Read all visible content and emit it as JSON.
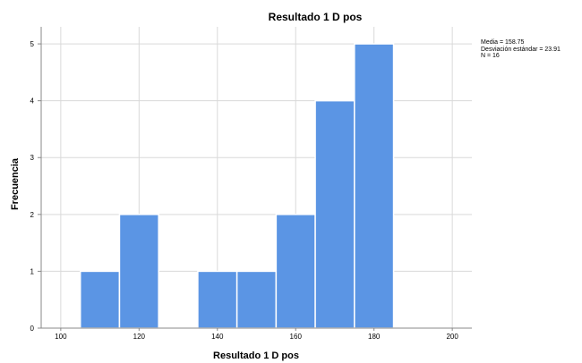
{
  "chart_data": {
    "type": "bar",
    "subtype": "histogram",
    "title": "Resultado 1 D pos",
    "xlabel": "Resultado 1 D pos",
    "ylabel": "Frecuencia",
    "xlim": [
      95,
      205
    ],
    "ylim": [
      0,
      5.3
    ],
    "xticks": [
      100,
      120,
      140,
      160,
      180,
      200
    ],
    "yticks": [
      0,
      1,
      2,
      3,
      4,
      5
    ],
    "bins": [
      {
        "start": 105,
        "end": 115,
        "count": 1
      },
      {
        "start": 115,
        "end": 125,
        "count": 2
      },
      {
        "start": 125,
        "end": 135,
        "count": 0
      },
      {
        "start": 135,
        "end": 145,
        "count": 1
      },
      {
        "start": 145,
        "end": 155,
        "count": 1
      },
      {
        "start": 155,
        "end": 165,
        "count": 2
      },
      {
        "start": 165,
        "end": 175,
        "count": 4
      },
      {
        "start": 175,
        "end": 185,
        "count": 5
      }
    ],
    "bar_color": "#5b95e4",
    "grid": true,
    "stats": [
      "Media = 158.75",
      "Desviación estándar = 23.91",
      "N = 16"
    ]
  }
}
